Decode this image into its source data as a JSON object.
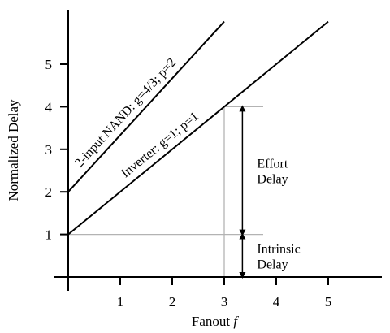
{
  "chart_data": {
    "type": "line",
    "xlabel": "Fanout",
    "xlabel_var": "f",
    "ylabel": "Normalized Delay",
    "xlim": [
      0,
      6
    ],
    "ylim": [
      0,
      6
    ],
    "x_ticks": [
      "1",
      "2",
      "3",
      "4",
      "5"
    ],
    "y_ticks": [
      "1",
      "2",
      "3",
      "4",
      "5"
    ],
    "grid": false,
    "series": [
      {
        "id": "nand",
        "label": "2-input NAND: g=4/3; p=2",
        "x": [
          0,
          3
        ],
        "y": [
          2,
          6
        ]
      },
      {
        "id": "inverter",
        "label": "Inverter: g=1; p=1",
        "x": [
          0,
          5
        ],
        "y": [
          1,
          6
        ]
      }
    ],
    "guides": [
      {
        "x": [
          0,
          3.75
        ],
        "y": [
          1,
          1
        ]
      },
      {
        "x": [
          3,
          3
        ],
        "y": [
          0,
          4
        ]
      },
      {
        "x": [
          3,
          3.75
        ],
        "y": [
          4,
          4
        ]
      }
    ],
    "annotations": [
      {
        "id": "effort",
        "lines": [
          "Effort",
          "Delay"
        ],
        "x": 3.35,
        "y_from": 1,
        "y_to": 4
      },
      {
        "id": "intrinsic",
        "lines": [
          "Intrinsic",
          "Delay"
        ],
        "x": 3.35,
        "y_from": 0,
        "y_to": 1
      }
    ],
    "colors": {
      "axis": "#000000",
      "line": "#000000",
      "guide": "#b3b3b3"
    }
  }
}
